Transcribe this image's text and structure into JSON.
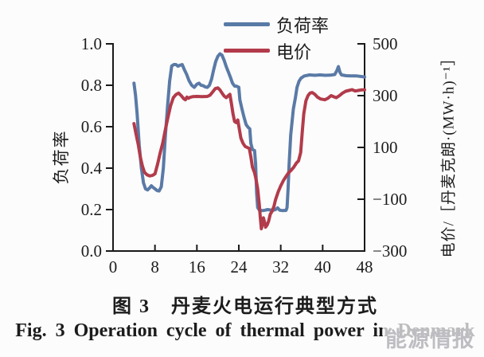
{
  "figure": {
    "caption_zh": "图 3　丹麦火电运行典型方式",
    "caption_en": "Fig. 3   Operation cycle of thermal power in Denmark",
    "watermark": "能源情报"
  },
  "chart_data": {
    "type": "line",
    "dual_axis": true,
    "grid": false,
    "legend_position": "top-center",
    "x_axis": {
      "label": "",
      "range": [
        0,
        48
      ],
      "ticks": [
        0,
        8,
        16,
        24,
        32,
        40,
        48
      ],
      "tick_labels": [
        "0",
        "8",
        "16",
        "24",
        "32",
        "40",
        "48"
      ]
    },
    "left_y_axis": {
      "label": "负荷率",
      "range": [
        0,
        1
      ],
      "ticks": [
        0,
        0.2,
        0.4,
        0.6,
        0.8,
        1.0
      ],
      "tick_labels": [
        "0.0",
        "0.2",
        "0.4",
        "0.6",
        "0.8",
        "1.0"
      ]
    },
    "right_y_axis": {
      "label": "电价/［丹麦克朗·(MW·h)⁻¹］",
      "range": [
        -300,
        500
      ],
      "ticks": [
        -300,
        -100,
        100,
        300,
        500
      ],
      "tick_labels": [
        "−300",
        "−100",
        "100",
        "300",
        "500"
      ]
    },
    "legend": [
      {
        "name": "负荷率",
        "color": "#5a7aa6"
      },
      {
        "name": "电价",
        "color": "#b23b4b"
      }
    ],
    "colors": {
      "axis": "#1a1a1a",
      "load_ratio": "#5a7aa6",
      "price": "#b23b4b"
    },
    "series": [
      {
        "name": "负荷率",
        "axis": "left",
        "color": "#5a7aa6",
        "points": [
          [
            4,
            0.81
          ],
          [
            4.3,
            0.75
          ],
          [
            4.6,
            0.66
          ],
          [
            5,
            0.51
          ],
          [
            5.4,
            0.4
          ],
          [
            5.8,
            0.33
          ],
          [
            6.2,
            0.3
          ],
          [
            6.6,
            0.295
          ],
          [
            7,
            0.305
          ],
          [
            7.3,
            0.315
          ],
          [
            7.6,
            0.308
          ],
          [
            8,
            0.3
          ],
          [
            8.4,
            0.292
          ],
          [
            8.8,
            0.29
          ],
          [
            9.2,
            0.31
          ],
          [
            9.6,
            0.4
          ],
          [
            10,
            0.56
          ],
          [
            10.4,
            0.7
          ],
          [
            10.8,
            0.82
          ],
          [
            11.2,
            0.893
          ],
          [
            11.6,
            0.9
          ],
          [
            12,
            0.9
          ],
          [
            12.4,
            0.892
          ],
          [
            12.8,
            0.897
          ],
          [
            13.2,
            0.9
          ],
          [
            13.6,
            0.876
          ],
          [
            14,
            0.855
          ],
          [
            14.5,
            0.822
          ],
          [
            15,
            0.8
          ],
          [
            15.5,
            0.79
          ],
          [
            16,
            0.805
          ],
          [
            16.4,
            0.81
          ],
          [
            16.8,
            0.8
          ],
          [
            17.2,
            0.798
          ],
          [
            17.6,
            0.792
          ],
          [
            18,
            0.79
          ],
          [
            18.4,
            0.8
          ],
          [
            18.8,
            0.83
          ],
          [
            19.2,
            0.875
          ],
          [
            19.6,
            0.915
          ],
          [
            20,
            0.94
          ],
          [
            20.4,
            0.952
          ],
          [
            20.8,
            0.945
          ],
          [
            21.2,
            0.92
          ],
          [
            21.6,
            0.89
          ],
          [
            22,
            0.865
          ],
          [
            22.4,
            0.838
          ],
          [
            22.8,
            0.81
          ],
          [
            23.2,
            0.796
          ],
          [
            23.6,
            0.795
          ],
          [
            24,
            0.79
          ],
          [
            24.2,
            0.73
          ],
          [
            24.6,
            0.685
          ],
          [
            25,
            0.645
          ],
          [
            25.4,
            0.61
          ],
          [
            25.8,
            0.596
          ],
          [
            26.1,
            0.59
          ],
          [
            26.3,
            0.52
          ],
          [
            26.6,
            0.49
          ],
          [
            27,
            0.485
          ],
          [
            27.2,
            0.42
          ],
          [
            27.4,
            0.28
          ],
          [
            27.6,
            0.21
          ],
          [
            27.9,
            0.198
          ],
          [
            28.5,
            0.195
          ],
          [
            29,
            0.197
          ],
          [
            29.5,
            0.2
          ],
          [
            30,
            0.198
          ],
          [
            30.5,
            0.196
          ],
          [
            31,
            0.2
          ],
          [
            31.4,
            0.208
          ],
          [
            31.8,
            0.197
          ],
          [
            32.4,
            0.195
          ],
          [
            33,
            0.196
          ],
          [
            33.2,
            0.21
          ],
          [
            33.4,
            0.3
          ],
          [
            33.6,
            0.42
          ],
          [
            33.9,
            0.56
          ],
          [
            34.4,
            0.685
          ],
          [
            34.8,
            0.74
          ],
          [
            35.1,
            0.79
          ],
          [
            35.5,
            0.82
          ],
          [
            35.9,
            0.835
          ],
          [
            36.5,
            0.845
          ],
          [
            37.5,
            0.85
          ],
          [
            38.5,
            0.848
          ],
          [
            39.5,
            0.85
          ],
          [
            40.5,
            0.848
          ],
          [
            41.5,
            0.849
          ],
          [
            42.3,
            0.852
          ],
          [
            42.7,
            0.87
          ],
          [
            43,
            0.89
          ],
          [
            43.3,
            0.862
          ],
          [
            43.6,
            0.85
          ],
          [
            44.5,
            0.846
          ],
          [
            45.5,
            0.845
          ],
          [
            46.5,
            0.845
          ],
          [
            47.5,
            0.842
          ],
          [
            48,
            0.84
          ]
        ]
      },
      {
        "name": "电价",
        "axis": "right",
        "color": "#b23b4b",
        "points": [
          [
            4,
            192
          ],
          [
            4.4,
            150
          ],
          [
            4.8,
            112
          ],
          [
            5.2,
            64
          ],
          [
            5.6,
            28
          ],
          [
            6,
            4
          ],
          [
            6.5,
            -6
          ],
          [
            7,
            -10
          ],
          [
            7.5,
            -8
          ],
          [
            8,
            -2
          ],
          [
            8.5,
            36
          ],
          [
            9,
            80
          ],
          [
            9.5,
            118
          ],
          [
            10,
            170
          ],
          [
            10.5,
            218
          ],
          [
            11,
            262
          ],
          [
            11.5,
            292
          ],
          [
            12,
            304
          ],
          [
            12.5,
            310
          ],
          [
            13,
            300
          ],
          [
            13.5,
            288
          ],
          [
            13.8,
            284
          ],
          [
            14.1,
            294
          ],
          [
            14.4,
            290
          ],
          [
            14.8,
            294
          ],
          [
            15.2,
            296
          ],
          [
            16,
            297
          ],
          [
            17,
            296
          ],
          [
            18,
            297
          ],
          [
            18.5,
            302
          ],
          [
            19,
            314
          ],
          [
            19.5,
            327
          ],
          [
            20,
            330
          ],
          [
            20.4,
            322
          ],
          [
            20.8,
            310
          ],
          [
            21.2,
            298
          ],
          [
            21.6,
            292
          ],
          [
            22,
            300
          ],
          [
            22.3,
            305
          ],
          [
            22.6,
            268
          ],
          [
            22.9,
            228
          ],
          [
            23.2,
            200
          ],
          [
            23.5,
            196
          ],
          [
            23.8,
            206
          ],
          [
            24.1,
            170
          ],
          [
            24.4,
            136
          ],
          [
            24.8,
            116
          ],
          [
            25.2,
            104
          ],
          [
            25.6,
            100
          ],
          [
            26,
            96
          ],
          [
            26.3,
            64
          ],
          [
            26.6,
            24
          ],
          [
            27,
            2
          ],
          [
            27.3,
            -24
          ],
          [
            27.6,
            -60
          ],
          [
            27.9,
            -120
          ],
          [
            28.1,
            -170
          ],
          [
            28.3,
            -214
          ],
          [
            28.5,
            -196
          ],
          [
            28.7,
            -172
          ],
          [
            28.9,
            -188
          ],
          [
            29.1,
            -208
          ],
          [
            29.4,
            -200
          ],
          [
            29.7,
            -184
          ],
          [
            30,
            -158
          ],
          [
            30.3,
            -148
          ],
          [
            30.7,
            -128
          ],
          [
            31,
            -102
          ],
          [
            31.5,
            -72
          ],
          [
            32,
            -48
          ],
          [
            32.5,
            -28
          ],
          [
            33,
            -12
          ],
          [
            33.5,
            2
          ],
          [
            34,
            12
          ],
          [
            34.5,
            24
          ],
          [
            35,
            40
          ],
          [
            35.4,
            48
          ],
          [
            35.8,
            80
          ],
          [
            36.1,
            160
          ],
          [
            36.4,
            230
          ],
          [
            36.8,
            280
          ],
          [
            37.2,
            300
          ],
          [
            37.6,
            310
          ],
          [
            38,
            312
          ],
          [
            38.5,
            305
          ],
          [
            39,
            294
          ],
          [
            39.6,
            287
          ],
          [
            40.4,
            284
          ],
          [
            41,
            290
          ],
          [
            41.6,
            300
          ],
          [
            42.2,
            295
          ],
          [
            42.6,
            292
          ],
          [
            43.2,
            300
          ],
          [
            43.8,
            310
          ],
          [
            44.4,
            317
          ],
          [
            45,
            320
          ],
          [
            45.6,
            323
          ],
          [
            46.2,
            318
          ],
          [
            46.8,
            320
          ],
          [
            47.4,
            322
          ],
          [
            48,
            322
          ]
        ]
      }
    ]
  }
}
